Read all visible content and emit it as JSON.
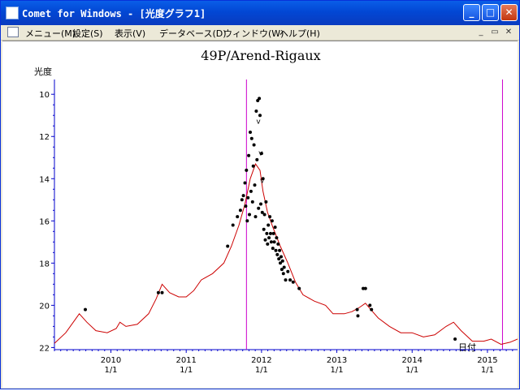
{
  "window": {
    "title": "Comet for Windows - [光度グラフ1]",
    "buttons": {
      "minimize": "_",
      "maximize": "□",
      "close": "✕"
    }
  },
  "menu": {
    "items": [
      "メニュー(M)",
      "設定(S)",
      "表示(V)",
      "データベース(D)",
      "ウィンドウ(W)",
      "ヘルプ(H)"
    ],
    "mdi_buttons": [
      "_",
      "▭",
      "✕"
    ]
  },
  "colors": {
    "title_bar": "#0a5ee8",
    "model_curve": "#cc0000",
    "marker_lines": "#cc00cc",
    "axis": "#0000cc",
    "points": "#000000"
  },
  "chart_data": {
    "type": "scatter",
    "title": "49P/Arend-Rigaux",
    "ylabel": "光度",
    "xlabel": "日付",
    "x_unit": "year",
    "xlim": [
      2009.25,
      2015.4
    ],
    "ylim": [
      22.1,
      9.3
    ],
    "y_inverted": true,
    "y_ticks": [
      10,
      12,
      14,
      16,
      18,
      20,
      22
    ],
    "x_ticks": [
      {
        "value": 2010,
        "year": "2010",
        "date": "1/1"
      },
      {
        "value": 2011,
        "year": "2011",
        "date": "1/1"
      },
      {
        "value": 2012,
        "year": "2012",
        "date": "1/1"
      },
      {
        "value": 2013,
        "year": "2013",
        "date": "1/1"
      },
      {
        "value": 2014,
        "year": "2014",
        "date": "1/1"
      },
      {
        "value": 2015,
        "year": "2015",
        "date": "1/1"
      }
    ],
    "vertical_markers": [
      2011.8,
      2015.2
    ],
    "v_marks": [
      {
        "x": 2011.96,
        "y": 12.9
      },
      {
        "x": 2011.98,
        "y": 14.2
      },
      {
        "x": 2011.93,
        "y": 11.4
      }
    ],
    "series": [
      {
        "kind": "line",
        "values": [
          [
            2009.25,
            21.8
          ],
          [
            2009.4,
            21.3
          ],
          [
            2009.5,
            20.8
          ],
          [
            2009.58,
            20.4
          ],
          [
            2009.68,
            20.8
          ],
          [
            2009.8,
            21.2
          ],
          [
            2009.95,
            21.3
          ],
          [
            2010.07,
            21.1
          ],
          [
            2010.12,
            20.8
          ],
          [
            2010.2,
            21.0
          ],
          [
            2010.35,
            20.9
          ],
          [
            2010.5,
            20.4
          ],
          [
            2010.6,
            19.7
          ],
          [
            2010.68,
            19.0
          ],
          [
            2010.78,
            19.4
          ],
          [
            2010.9,
            19.6
          ],
          [
            2011.0,
            19.6
          ],
          [
            2011.1,
            19.3
          ],
          [
            2011.2,
            18.8
          ],
          [
            2011.35,
            18.5
          ],
          [
            2011.5,
            18.0
          ],
          [
            2011.6,
            17.2
          ],
          [
            2011.7,
            16.2
          ],
          [
            2011.78,
            15.2
          ],
          [
            2011.85,
            14.0
          ],
          [
            2011.92,
            13.3
          ],
          [
            2011.98,
            13.6
          ],
          [
            2012.02,
            14.6
          ],
          [
            2012.08,
            15.6
          ],
          [
            2012.15,
            16.3
          ],
          [
            2012.25,
            17.2
          ],
          [
            2012.35,
            18.0
          ],
          [
            2012.45,
            18.9
          ],
          [
            2012.55,
            19.5
          ],
          [
            2012.7,
            19.8
          ],
          [
            2012.85,
            20.0
          ],
          [
            2012.95,
            20.4
          ],
          [
            2013.1,
            20.4
          ],
          [
            2013.2,
            20.3
          ],
          [
            2013.3,
            20.1
          ],
          [
            2013.38,
            19.9
          ],
          [
            2013.45,
            20.2
          ],
          [
            2013.55,
            20.6
          ],
          [
            2013.7,
            21.0
          ],
          [
            2013.85,
            21.3
          ],
          [
            2014.0,
            21.3
          ],
          [
            2014.15,
            21.5
          ],
          [
            2014.3,
            21.4
          ],
          [
            2014.45,
            21.0
          ],
          [
            2014.55,
            20.8
          ],
          [
            2014.65,
            21.2
          ],
          [
            2014.8,
            21.7
          ],
          [
            2014.95,
            21.7
          ],
          [
            2015.05,
            21.6
          ],
          [
            2015.18,
            21.85
          ],
          [
            2015.3,
            21.75
          ],
          [
            2015.4,
            21.6
          ]
        ]
      },
      {
        "kind": "points",
        "values": [
          [
            2009.66,
            20.2
          ],
          [
            2010.63,
            19.4
          ],
          [
            2010.68,
            19.4
          ],
          [
            2011.55,
            17.2
          ],
          [
            2011.62,
            16.2
          ],
          [
            2011.68,
            15.8
          ],
          [
            2011.72,
            15.5
          ],
          [
            2011.74,
            15.0
          ],
          [
            2011.76,
            14.8
          ],
          [
            2011.78,
            14.2
          ],
          [
            2011.79,
            15.3
          ],
          [
            2011.8,
            13.6
          ],
          [
            2011.81,
            16.0
          ],
          [
            2011.82,
            14.9
          ],
          [
            2011.83,
            12.9
          ],
          [
            2011.84,
            15.7
          ],
          [
            2011.85,
            11.8
          ],
          [
            2011.86,
            14.6
          ],
          [
            2011.87,
            12.1
          ],
          [
            2011.88,
            15.1
          ],
          [
            2011.89,
            13.4
          ],
          [
            2011.9,
            12.4
          ],
          [
            2011.91,
            14.3
          ],
          [
            2011.92,
            15.8
          ],
          [
            2011.93,
            10.8
          ],
          [
            2011.94,
            13.1
          ],
          [
            2011.95,
            10.3
          ],
          [
            2011.96,
            15.4
          ],
          [
            2011.97,
            10.2
          ],
          [
            2011.98,
            11.0
          ],
          [
            2011.99,
            15.2
          ],
          [
            2012.0,
            12.8
          ],
          [
            2012.01,
            15.6
          ],
          [
            2012.02,
            14.0
          ],
          [
            2012.03,
            16.4
          ],
          [
            2012.04,
            15.7
          ],
          [
            2012.05,
            16.9
          ],
          [
            2012.06,
            15.1
          ],
          [
            2012.07,
            16.6
          ],
          [
            2012.08,
            17.1
          ],
          [
            2012.09,
            16.2
          ],
          [
            2012.1,
            16.8
          ],
          [
            2012.11,
            15.8
          ],
          [
            2012.12,
            16.6
          ],
          [
            2012.13,
            17.0
          ],
          [
            2012.14,
            16.0
          ],
          [
            2012.15,
            17.3
          ],
          [
            2012.16,
            16.6
          ],
          [
            2012.17,
            17.0
          ],
          [
            2012.18,
            16.3
          ],
          [
            2012.19,
            17.4
          ],
          [
            2012.2,
            16.8
          ],
          [
            2012.21,
            17.6
          ],
          [
            2012.22,
            17.1
          ],
          [
            2012.23,
            17.8
          ],
          [
            2012.24,
            17.4
          ],
          [
            2012.25,
            18.0
          ],
          [
            2012.26,
            17.7
          ],
          [
            2012.27,
            18.3
          ],
          [
            2012.28,
            17.9
          ],
          [
            2012.29,
            18.5
          ],
          [
            2012.3,
            18.2
          ],
          [
            2012.32,
            18.8
          ],
          [
            2012.35,
            18.4
          ],
          [
            2012.38,
            18.8
          ],
          [
            2012.42,
            18.9
          ],
          [
            2012.5,
            19.2
          ],
          [
            2013.27,
            20.2
          ],
          [
            2013.28,
            20.5
          ],
          [
            2013.35,
            19.2
          ],
          [
            2013.38,
            19.2
          ],
          [
            2013.44,
            20.0
          ],
          [
            2013.46,
            20.2
          ],
          [
            2014.57,
            21.6
          ]
        ]
      }
    ]
  }
}
